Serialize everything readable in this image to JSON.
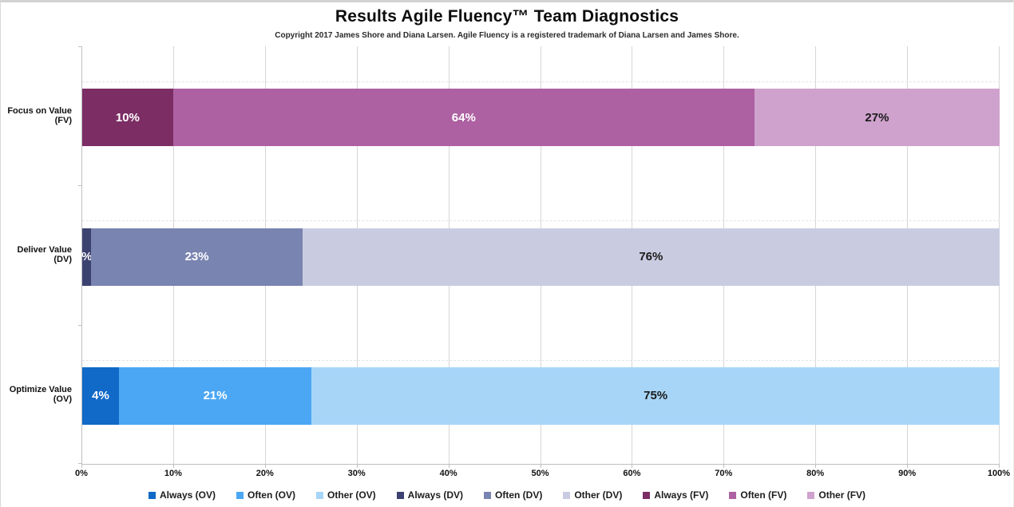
{
  "header": {
    "title": "Results Agile Fluency™ Team Diagnostics",
    "subtitle": "Copyright 2017 James Shore and Diana Larsen. Agile Fluency is a registered trademark of Diana Larsen and James Shore."
  },
  "chart_data": {
    "type": "bar",
    "orientation": "horizontal",
    "stacked": true,
    "title": "Results Agile Fluency™ Team Diagnostics",
    "xlabel": "",
    "ylabel": "",
    "xlim": [
      0,
      100
    ],
    "grid": "vertical",
    "x_ticks": [
      "0%",
      "10%",
      "20%",
      "30%",
      "40%",
      "50%",
      "60%",
      "70%",
      "80%",
      "90%",
      "100%"
    ],
    "categories": [
      "Focus on Value (FV)",
      "Deliver Value (DV)",
      "Optimize Value (OV)"
    ],
    "rows": [
      {
        "category": "Focus on Value (FV)",
        "segments": [
          {
            "name": "Always (FV)",
            "value": 10,
            "label": "10%",
            "color": "#7b2d64",
            "label_color": "#ffffff"
          },
          {
            "name": "Often (FV)",
            "value": 64,
            "label": "64%",
            "color": "#ad61a2",
            "label_color": "#ffffff"
          },
          {
            "name": "Other (FV)",
            "value": 27,
            "label": "27%",
            "color": "#cfa2cd",
            "label_color": "#1a1a1a"
          }
        ]
      },
      {
        "category": "Deliver Value (DV)",
        "segments": [
          {
            "name": "Always (DV)",
            "value": 1,
            "label": "%",
            "color": "#3c4270",
            "label_color": "#ffffff"
          },
          {
            "name": "Often (DV)",
            "value": 23,
            "label": "23%",
            "color": "#7a84b1",
            "label_color": "#ffffff"
          },
          {
            "name": "Other (DV)",
            "value": 76,
            "label": "76%",
            "color": "#c9cce1",
            "label_color": "#1a1a1a"
          }
        ]
      },
      {
        "category": "Optimize Value (OV)",
        "segments": [
          {
            "name": "Always (OV)",
            "value": 4,
            "label": "4%",
            "color": "#1169c8",
            "label_color": "#ffffff"
          },
          {
            "name": "Often (OV)",
            "value": 21,
            "label": "21%",
            "color": "#4ba7f4",
            "label_color": "#ffffff"
          },
          {
            "name": "Other (OV)",
            "value": 75,
            "label": "75%",
            "color": "#a7d5f7",
            "label_color": "#1a1a1a"
          }
        ]
      }
    ],
    "legend": {
      "position": "bottom",
      "entries": [
        {
          "label": "Always (OV)",
          "color": "#1169c8"
        },
        {
          "label": "Often (OV)",
          "color": "#4ba7f4"
        },
        {
          "label": "Other (OV)",
          "color": "#a7d5f7"
        },
        {
          "label": "Always (DV)",
          "color": "#3c4270"
        },
        {
          "label": "Often (DV)",
          "color": "#7a84b1"
        },
        {
          "label": "Other (DV)",
          "color": "#c9cce1"
        },
        {
          "label": "Always (FV)",
          "color": "#7b2d64"
        },
        {
          "label": "Often (FV)",
          "color": "#ad61a2"
        },
        {
          "label": "Other (FV)",
          "color": "#cfa2cd"
        }
      ]
    },
    "colors": {
      "gridline": "#d6d6d6",
      "axis": "#bfbfbf"
    }
  }
}
